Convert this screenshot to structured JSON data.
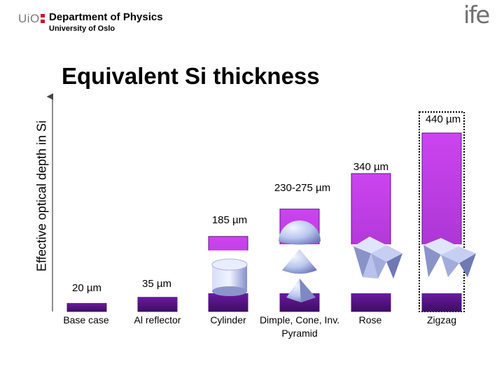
{
  "header": {
    "uio_mark": "UiO",
    "department": "Department of Physics",
    "university": "University of Oslo",
    "ife_logo": "ife"
  },
  "chart_data": {
    "type": "bar",
    "title": "Equivalent Si thickness",
    "ylabel": "Effective optical depth in Si",
    "xlabel": "",
    "categories": [
      "Base case",
      "Al reflector",
      "Cylinder",
      "Dimple, Cone, Inv. Pyramid",
      "Rose",
      "Zigzag"
    ],
    "values": [
      20,
      35,
      185,
      252.5,
      340,
      440
    ],
    "data_labels": [
      "20 µm",
      "35 µm",
      "185 µm",
      "230-275 µm",
      "340 µm",
      "440 µm"
    ],
    "unit": "µm",
    "ylim": [
      0,
      460
    ],
    "grid": false,
    "bar_color": "#b03dd8",
    "highlighted_category": "Zigzag"
  }
}
